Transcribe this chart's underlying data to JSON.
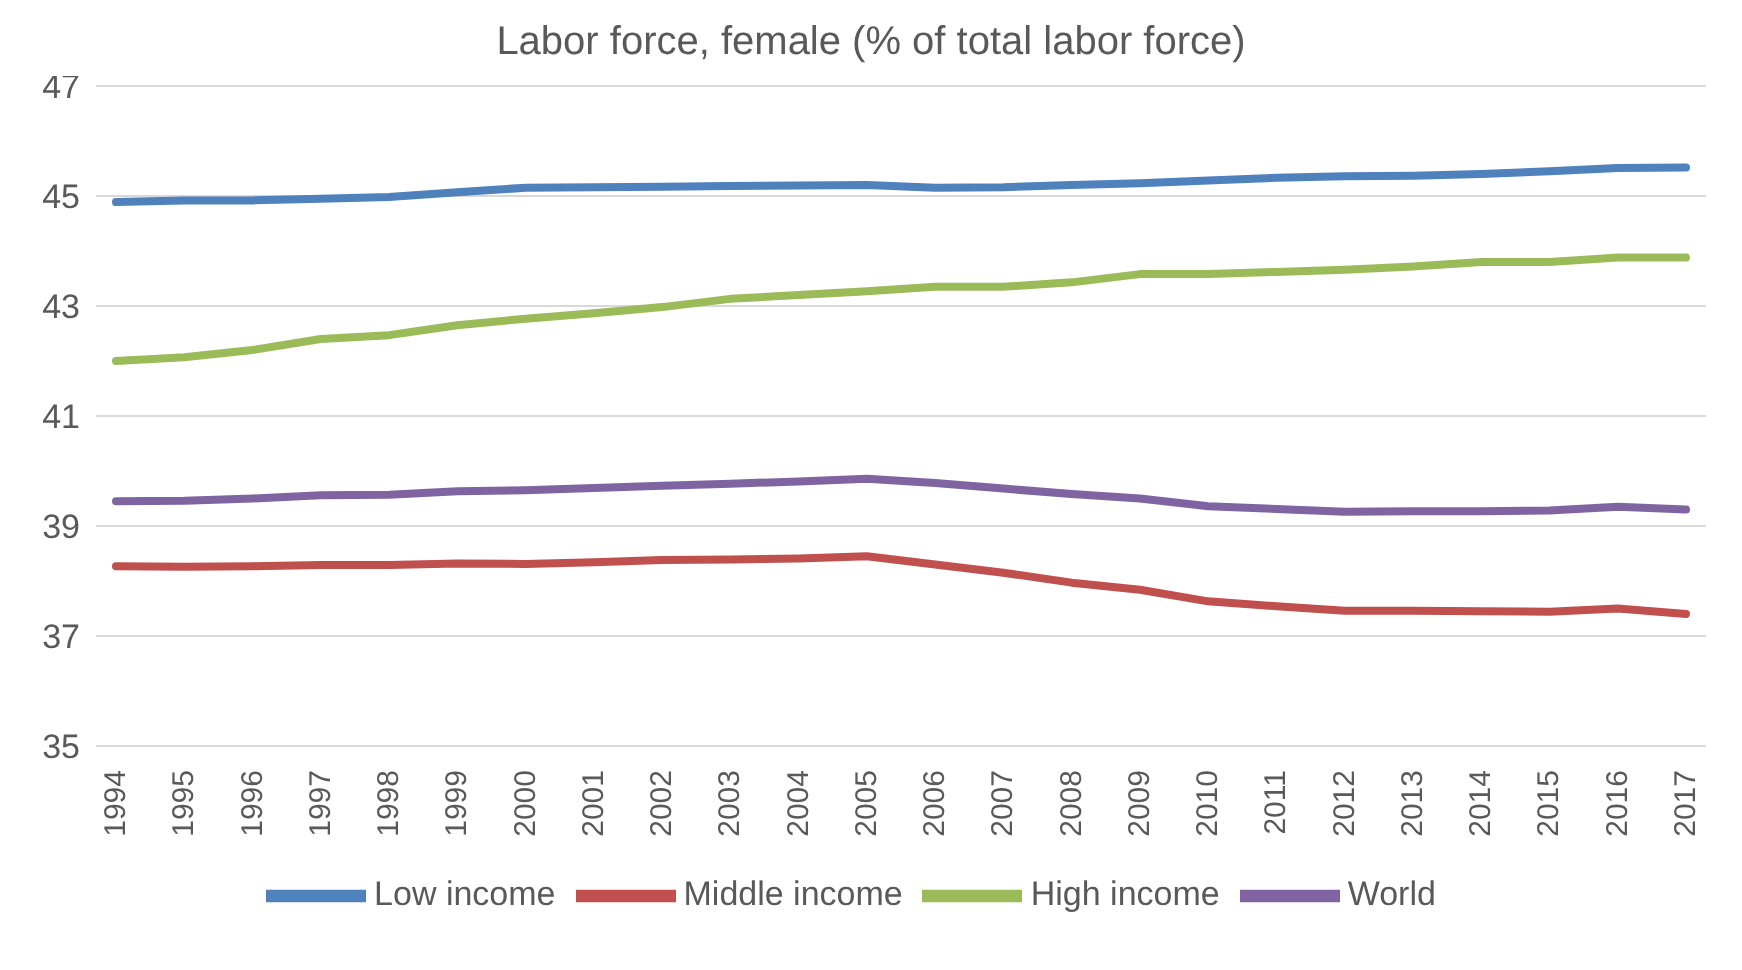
{
  "chart_data": {
    "type": "line",
    "title": "Labor force, female (% of total labor force)",
    "categories": [
      "1994",
      "1995",
      "1996",
      "1997",
      "1998",
      "1999",
      "2000",
      "2001",
      "2002",
      "2003",
      "2004",
      "2005",
      "2006",
      "2007",
      "2008",
      "2009",
      "2010",
      "2011",
      "2012",
      "2013",
      "2014",
      "2015",
      "2016",
      "2017"
    ],
    "series": [
      {
        "name": "Low income",
        "color": "#4f81bd",
        "values": [
          44.89,
          44.92,
          44.92,
          44.95,
          44.98,
          45.07,
          45.15,
          45.16,
          45.17,
          45.18,
          45.19,
          45.2,
          45.15,
          45.16,
          45.2,
          45.23,
          45.28,
          45.33,
          45.36,
          45.37,
          45.4,
          45.45,
          45.51,
          45.52
        ]
      },
      {
        "name": "Middle income",
        "color": "#c0504d",
        "values": [
          38.27,
          38.26,
          38.27,
          38.29,
          38.29,
          38.32,
          38.31,
          38.34,
          38.38,
          38.39,
          38.41,
          38.45,
          38.3,
          38.15,
          37.97,
          37.84,
          37.63,
          37.54,
          37.46,
          37.46,
          37.45,
          37.44,
          37.5,
          37.4
        ]
      },
      {
        "name": "High income",
        "color": "#9bbb59",
        "values": [
          42.0,
          42.07,
          42.2,
          42.4,
          42.47,
          42.65,
          42.77,
          42.87,
          42.98,
          43.13,
          43.2,
          43.27,
          43.35,
          43.35,
          43.43,
          43.58,
          43.58,
          43.62,
          43.66,
          43.72,
          43.8,
          43.8,
          43.88,
          43.88
        ]
      },
      {
        "name": "World",
        "color": "#8064a2",
        "values": [
          39.45,
          39.46,
          39.5,
          39.56,
          39.57,
          39.63,
          39.65,
          39.69,
          39.73,
          39.77,
          39.81,
          39.86,
          39.78,
          39.68,
          39.58,
          39.5,
          39.36,
          39.31,
          39.26,
          39.27,
          39.27,
          39.28,
          39.35,
          39.3
        ]
      }
    ],
    "ylim": [
      35,
      47
    ],
    "yticks": [
      35,
      37,
      39,
      41,
      43,
      45,
      47
    ],
    "grid": "y",
    "legend": "bottom",
    "marker": "none",
    "line_style": "solid"
  }
}
